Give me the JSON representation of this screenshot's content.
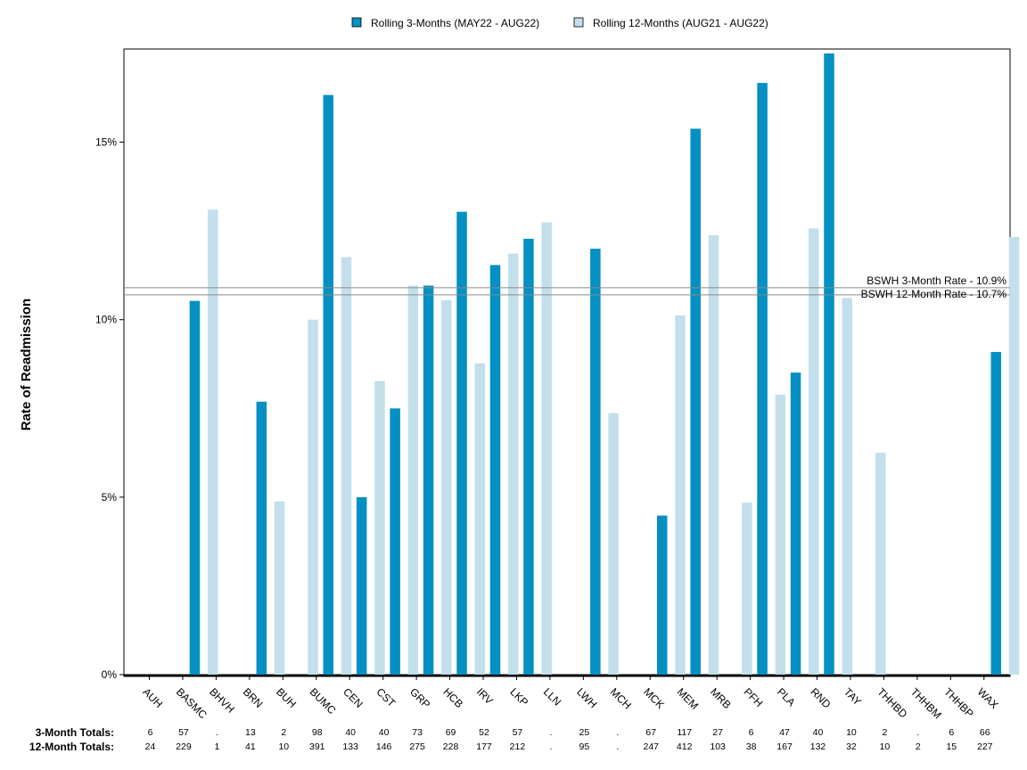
{
  "chart_data": {
    "type": "bar",
    "ylabel": "Rate of Readmission",
    "ylim": [
      0,
      17.5
    ],
    "yticks": [
      0,
      5,
      10,
      15
    ],
    "ytick_labels": [
      "0%",
      "5%",
      "10%",
      "15%"
    ],
    "legend_position": "top-center",
    "categories": [
      "AUH",
      "BASMC",
      "BHVH",
      "BRN",
      "BUH",
      "BUMC",
      "CEN",
      "CST",
      "GRP",
      "HCB",
      "IRV",
      "LKP",
      "LLN",
      "LWH",
      "MCH",
      "MCK",
      "MEM",
      "MRB",
      "PFH",
      "PLA",
      "RND",
      "TAY",
      "THHBD",
      "THHBM",
      "THHBP",
      "WAX"
    ],
    "series": [
      {
        "name": "Rolling 3-Months (MAY22 - AUG22)",
        "color": "#0490c2",
        "values": [
          0,
          10.53,
          0,
          7.69,
          0,
          16.33,
          5.0,
          7.5,
          10.96,
          13.04,
          11.54,
          12.28,
          0,
          12.0,
          0,
          4.48,
          15.38,
          0,
          16.67,
          8.51,
          17.5,
          0,
          0,
          0,
          0,
          9.09
        ]
      },
      {
        "name": "Rolling 12-Months (AUG21 - AUG22)",
        "color": "#c2dfeb",
        "values": [
          0,
          13.1,
          0,
          4.88,
          10.0,
          11.76,
          8.27,
          10.96,
          10.55,
          8.77,
          11.86,
          12.74,
          0,
          7.37,
          0,
          10.12,
          12.38,
          4.85,
          7.89,
          12.57,
          10.61,
          6.25,
          0,
          0,
          0,
          12.33
        ]
      }
    ],
    "reference_lines": [
      {
        "label": "BSWH 3-Month Rate - 10.9%",
        "value": 10.9
      },
      {
        "label": "BSWH 12-Month Rate - 10.7%",
        "value": 10.7
      }
    ],
    "totals": {
      "three_month_label": "3-Month Totals:",
      "twelve_month_label": "12-Month Totals:",
      "three_month": [
        "6",
        "57",
        ".",
        "13",
        "2",
        "98",
        "40",
        "40",
        "73",
        "69",
        "52",
        "57",
        ".",
        "25",
        ".",
        "67",
        "117",
        "27",
        "6",
        "47",
        "40",
        "10",
        "2",
        ".",
        "6",
        "66"
      ],
      "twelve_month": [
        "24",
        "229",
        "1",
        "41",
        "10",
        "391",
        "133",
        "146",
        "275",
        "228",
        "177",
        "212",
        ".",
        "95",
        ".",
        "247",
        "412",
        "103",
        "38",
        "167",
        "132",
        "32",
        "10",
        "2",
        "15",
        "227"
      ]
    }
  }
}
